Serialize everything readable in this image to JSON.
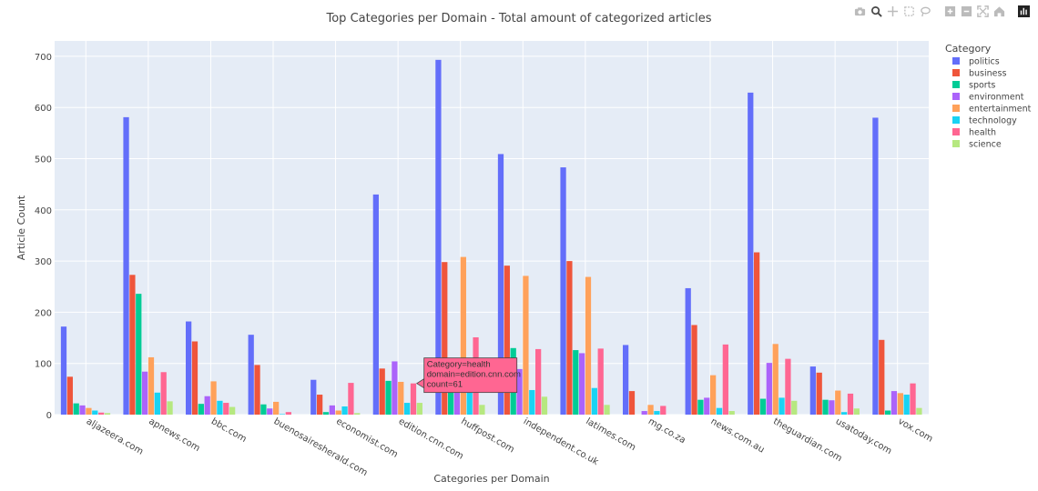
{
  "modebar": {
    "buttons": [
      "camera-icon",
      "zoom-icon",
      "pan-icon",
      "box-select-icon",
      "lasso-select-icon",
      "zoom-in-icon",
      "zoom-out-icon",
      "autoscale-icon",
      "reset-axes-icon",
      "plotly-logo-icon"
    ]
  },
  "tooltip": {
    "line1": "Category=health",
    "line2": "domain=edition.cnn.com",
    "line3": "count=61",
    "color": "#FF6692"
  },
  "chart_data": {
    "type": "bar",
    "title": "Top Categories per Domain - Total amount of categorized articles",
    "xlabel": "Categories per Domain",
    "ylabel": "Article Count",
    "ylim": [
      0,
      730
    ],
    "yticks": [
      0,
      100,
      200,
      300,
      400,
      500,
      600,
      700
    ],
    "grid": true,
    "legend_title": "Category",
    "legend_position": "top-right",
    "categories": [
      "aljazeera.com",
      "apnews.com",
      "bbc.com",
      "buenosairesherald.com",
      "economist.com",
      "edition.cnn.com",
      "huffpost.com",
      "independent.co.uk",
      "latimes.com",
      "mg.co.za",
      "news.com.au",
      "theguardian.com",
      "usatoday.com",
      "vox.com"
    ],
    "series": [
      {
        "name": "politics",
        "color": "#636EFA",
        "values": [
          172,
          581,
          182,
          156,
          68,
          430,
          693,
          509,
          483,
          136,
          247,
          629,
          94,
          580
        ]
      },
      {
        "name": "business",
        "color": "#EF553B",
        "values": [
          74,
          273,
          143,
          97,
          39,
          90,
          298,
          291,
          300,
          46,
          175,
          317,
          82,
          146
        ]
      },
      {
        "name": "sports",
        "color": "#00CC96",
        "values": [
          22,
          236,
          21,
          20,
          5,
          66,
          60,
          130,
          126,
          0,
          29,
          31,
          29,
          8
        ]
      },
      {
        "name": "environment",
        "color": "#AB63FA",
        "values": [
          18,
          84,
          36,
          12,
          18,
          104,
          60,
          89,
          120,
          7,
          33,
          101,
          28,
          46
        ]
      },
      {
        "name": "entertainment",
        "color": "#FFA15A",
        "values": [
          13,
          112,
          65,
          25,
          8,
          64,
          308,
          271,
          269,
          19,
          77,
          138,
          47,
          42
        ]
      },
      {
        "name": "technology",
        "color": "#19D3F3",
        "values": [
          8,
          43,
          27,
          1,
          16,
          23,
          60,
          48,
          52,
          7,
          13,
          33,
          5,
          39
        ]
      },
      {
        "name": "health",
        "color": "#FF6692",
        "values": [
          4,
          83,
          23,
          5,
          62,
          61,
          151,
          128,
          129,
          17,
          137,
          109,
          41,
          61
        ]
      },
      {
        "name": "science",
        "color": "#B6E880",
        "values": [
          3,
          26,
          15,
          0,
          3,
          23,
          19,
          35,
          19,
          0,
          7,
          27,
          12,
          13
        ]
      }
    ]
  }
}
